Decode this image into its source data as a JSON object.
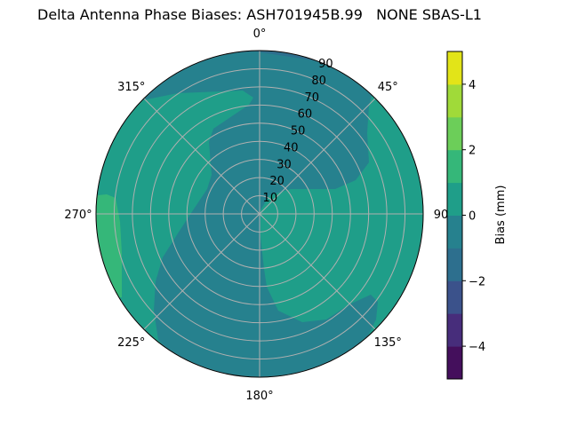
{
  "chart_data": {
    "type": "polar-contour",
    "title": "Delta Antenna Phase Biases: ASH701945B.99   NONE SBAS-L1",
    "angular_ticks": [
      "0°",
      "45°",
      "90",
      "135°",
      "180°",
      "225°",
      "270°",
      "315°"
    ],
    "radial_ticks": [
      "10",
      "20",
      "30",
      "40",
      "50",
      "60",
      "70",
      "80",
      "90"
    ],
    "radial_range": [
      0,
      90
    ],
    "angular_direction": "clockwise",
    "zero_location": "top",
    "grid": true,
    "colorbar": {
      "label": "Bias (mm)",
      "levels": [
        -5,
        -4,
        -3,
        -2,
        -1,
        0,
        1,
        2,
        3,
        4,
        5
      ],
      "ticks": [
        "4",
        "2",
        "0",
        "−2",
        "−4"
      ],
      "tick_values": [
        4,
        2,
        0,
        -2,
        -4
      ],
      "colors": [
        "#440f5c",
        "#472d7b",
        "#3b528b",
        "#2d6f8e",
        "#26818e",
        "#1f9e89",
        "#35b779",
        "#6cce59",
        "#a0da39",
        "#e2e418"
      ],
      "colormap": "viridis"
    },
    "regions": [
      {
        "level_range": [
          -1,
          0
        ],
        "description_area": "dominant background, central diagonal band from north to south-west"
      },
      {
        "level_range": [
          0,
          1
        ],
        "description_area": "west/north-west sector and east/south-east sector"
      },
      {
        "level_range": [
          1,
          2
        ],
        "description_area": "western edge near 270°"
      },
      {
        "level_range": [
          -2,
          -1
        ],
        "description_area": "northern edge near 0°–30°"
      }
    ]
  }
}
